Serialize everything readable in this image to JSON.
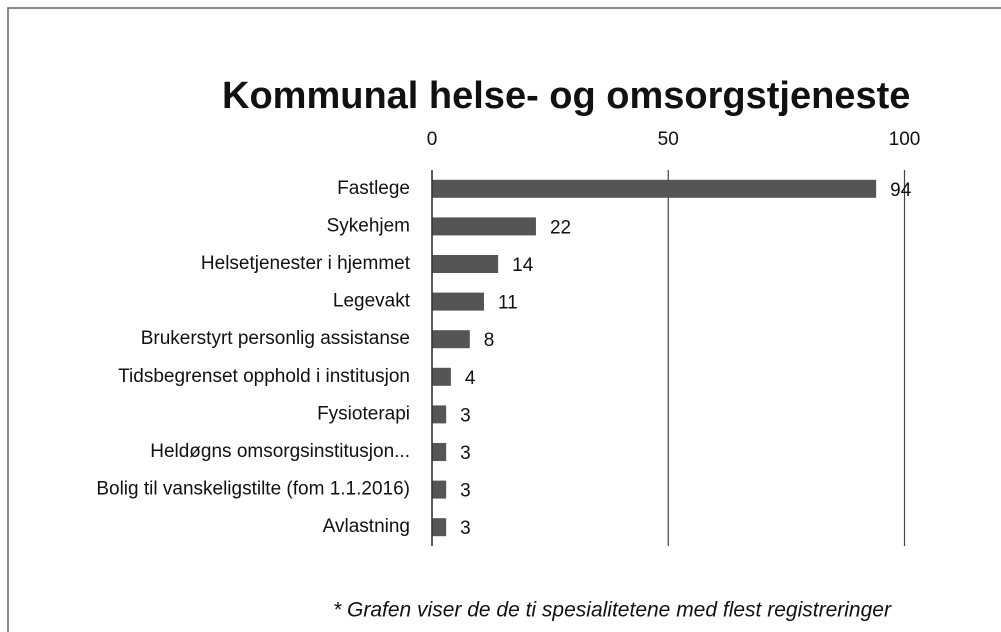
{
  "chart_data": {
    "type": "bar",
    "orientation": "horizontal",
    "title": "Kommunal helse- og omsorgstjeneste",
    "note": "* Grafen viser de de ti spesialitetene med flest registreringer",
    "categories": [
      "Fastlege",
      "Sykehjem",
      "Helsetjenester i hjemmet",
      "Legevakt",
      "Brukerstyrt personlig assistanse",
      "Tidsbegrenset opphold i institusjon",
      "Fysioterapi",
      "Heldøgns omsorgsinstitusjon...",
      "Bolig til vanskeligstilte (fom 1.1.2016)",
      "Avlastning"
    ],
    "values": [
      94,
      22,
      14,
      11,
      8,
      4,
      3,
      3,
      3,
      3
    ],
    "color": "#555555",
    "xlim": [
      0,
      120
    ],
    "xticks": [
      0,
      50,
      100
    ],
    "grid": true
  }
}
